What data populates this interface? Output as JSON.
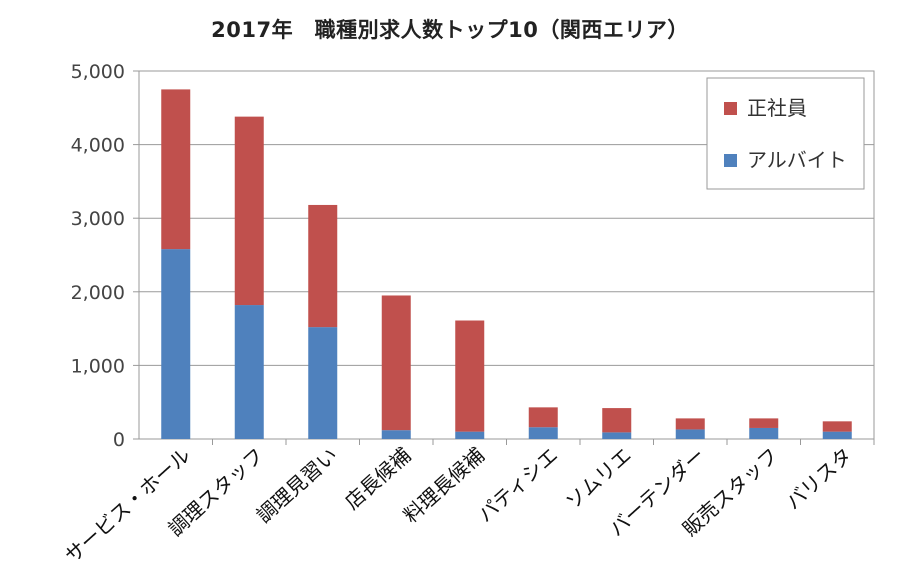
{
  "chart_data": {
    "type": "bar",
    "stacked": true,
    "title": "2017年　職種別求人数トップ10（関西エリア）",
    "categories": [
      "サービス・ホール",
      "調理スタッフ",
      "調理見習い",
      "店長候補",
      "料理長候補",
      "パティシエ",
      "ソムリエ",
      "バーテンダー",
      "販売スタッフ",
      "バリスタ"
    ],
    "series": [
      {
        "name": "アルバイト",
        "color": "#4f81bd",
        "values": [
          2580,
          1820,
          1520,
          120,
          100,
          160,
          90,
          130,
          150,
          100
        ]
      },
      {
        "name": "正社員",
        "color": "#c0504d",
        "values": [
          2170,
          2560,
          1660,
          1830,
          1510,
          270,
          330,
          150,
          130,
          140
        ]
      }
    ],
    "ylim": [
      0,
      5000
    ],
    "yticks": [
      0,
      1000,
      2000,
      3000,
      4000,
      5000
    ],
    "ytick_labels": [
      "0",
      "1,000",
      "2,000",
      "3,000",
      "4,000",
      "5,000"
    ],
    "grid": true,
    "legend_position": "top-right",
    "legend": [
      "正社員",
      "アルバイト"
    ]
  }
}
